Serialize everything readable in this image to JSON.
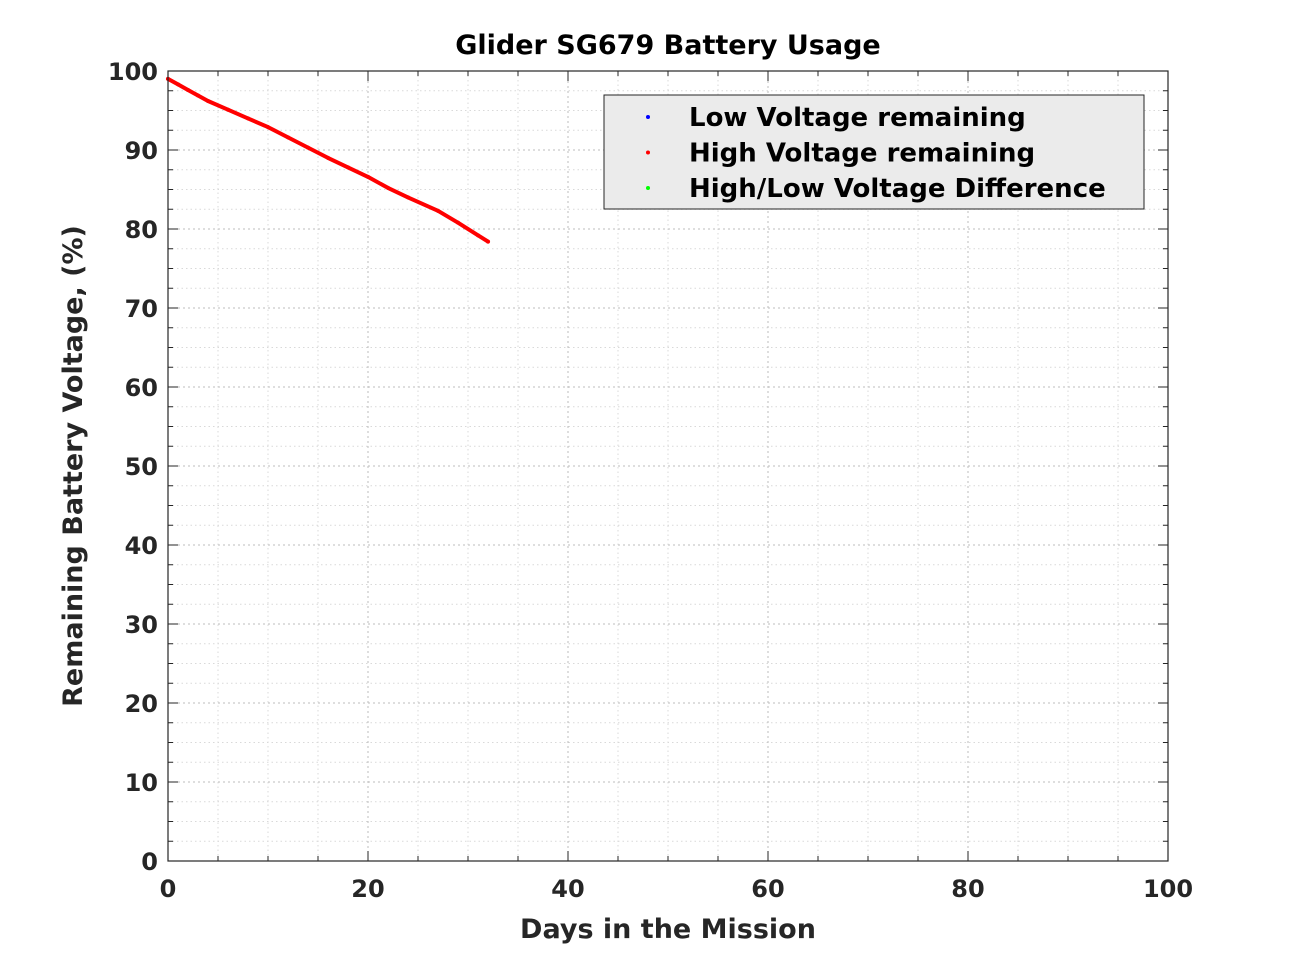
{
  "chart_data": {
    "type": "line",
    "title": "Glider SG679 Battery Usage",
    "xlabel": "Days in the Mission",
    "ylabel": "Remaining Battery Voltage, (%)",
    "xlim": [
      0,
      100
    ],
    "ylim": [
      0,
      100
    ],
    "xticks": [
      0,
      20,
      40,
      60,
      80,
      100
    ],
    "yticks": [
      0,
      10,
      20,
      30,
      40,
      50,
      60,
      70,
      80,
      90,
      100
    ],
    "grid": true,
    "legend_position": "top-right",
    "series": [
      {
        "name": "Low Voltage remaining",
        "color": "#0000ff",
        "x": [],
        "y": []
      },
      {
        "name": "High Voltage remaining",
        "color": "#ff0000",
        "x": [
          0,
          1,
          2,
          3,
          4,
          6,
          8,
          10,
          12,
          14,
          16,
          18,
          20,
          22,
          24,
          27,
          29,
          31,
          32
        ],
        "y": [
          99,
          98.3,
          97.6,
          96.9,
          96.2,
          95.1,
          94.0,
          92.9,
          91.6,
          90.3,
          89.0,
          87.8,
          86.6,
          85.2,
          84.0,
          82.3,
          80.8,
          79.2,
          78.4
        ]
      },
      {
        "name": "High/Low Voltage Difference",
        "color": "#00ff00",
        "x": [],
        "y": []
      }
    ]
  }
}
